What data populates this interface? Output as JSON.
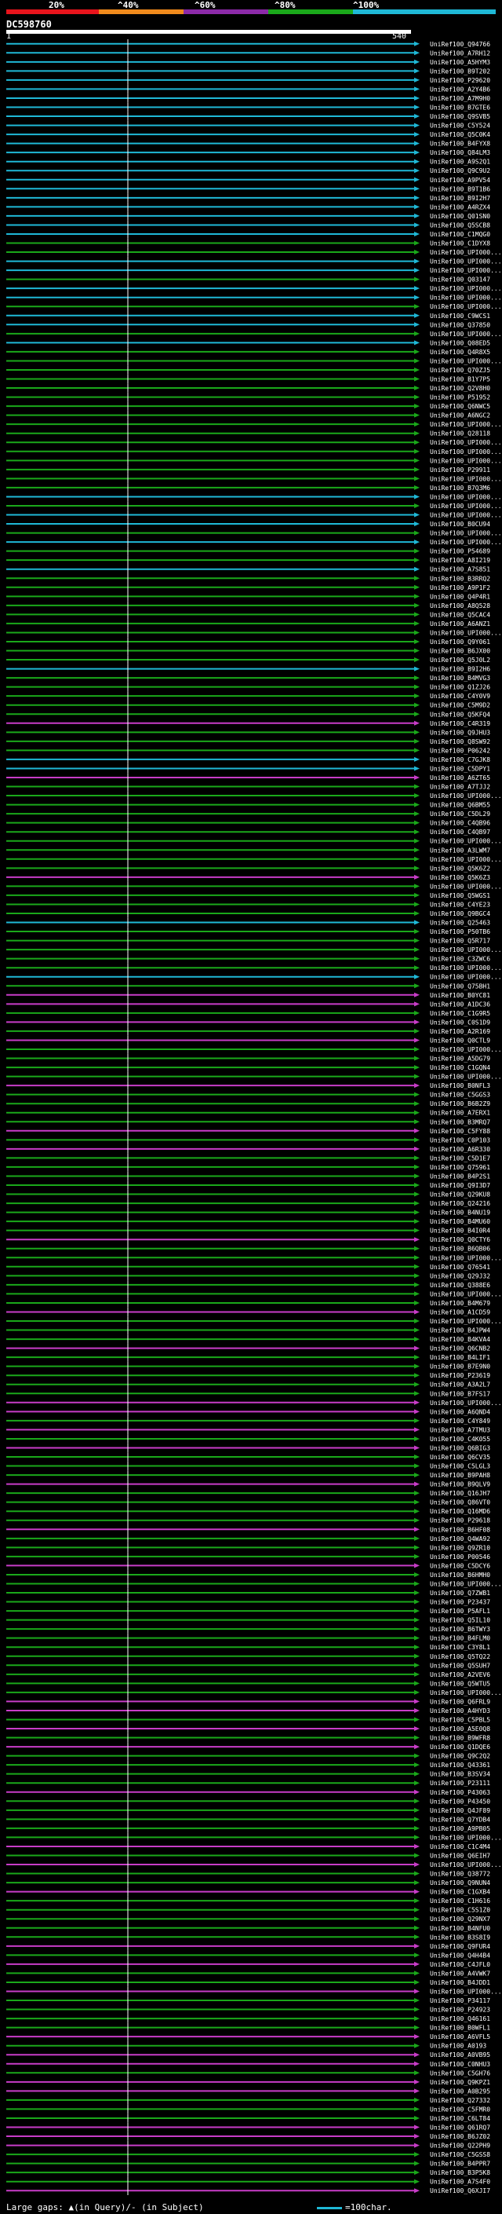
{
  "scale": {
    "labels": [
      "20%",
      "^40%",
      "^60%",
      "^80%",
      "^100%"
    ],
    "colors": [
      "#e8141c",
      "#f08a1c",
      "#8c2aa8",
      "#1aa81a",
      "#1fb8d6"
    ]
  },
  "query": {
    "name": "DC598760",
    "start": "1",
    "end": "540"
  },
  "hits": [
    {
      "label": "UniRef100_Q94766",
      "c": "cyan"
    },
    {
      "label": "UniRef100_A7RH12",
      "c": "cyan"
    },
    {
      "label": "UniRef100_A5HYM3",
      "c": "cyan"
    },
    {
      "label": "UniRef100_B9T202",
      "c": "cyan"
    },
    {
      "label": "UniRef100_P29620",
      "c": "cyan"
    },
    {
      "label": "UniRef100_A2Y4B6",
      "c": "cyan"
    },
    {
      "label": "UniRef100_A7M9H0",
      "c": "cyan"
    },
    {
      "label": "UniRef100_B7GTE6",
      "c": "cyan"
    },
    {
      "label": "UniRef100_Q9SVB5",
      "c": "cyan"
    },
    {
      "label": "UniRef100_C5Y524",
      "c": "cyan"
    },
    {
      "label": "UniRef100_Q5C0K4",
      "c": "cyan"
    },
    {
      "label": "UniRef100_B4FYX8",
      "c": "cyan"
    },
    {
      "label": "UniRef100_Q84LM3",
      "c": "cyan"
    },
    {
      "label": "UniRef100_A9S2Q1",
      "c": "cyan"
    },
    {
      "label": "UniRef100_Q9C9U2",
      "c": "cyan"
    },
    {
      "label": "UniRef100_A9PV54",
      "c": "cyan"
    },
    {
      "label": "UniRef100_B9T1B6",
      "c": "cyan"
    },
    {
      "label": "UniRef100_B9I2H7",
      "c": "cyan"
    },
    {
      "label": "UniRef100_A4RZX4",
      "c": "cyan"
    },
    {
      "label": "UniRef100_Q01SN0",
      "c": "cyan"
    },
    {
      "label": "UniRef100_Q5SCB8",
      "c": "cyan"
    },
    {
      "label": "UniRef100_C1MQG0",
      "c": "cyan"
    },
    {
      "label": "UniRef100_C1DYX8",
      "c": "green"
    },
    {
      "label": "UniRef100_UPI000...",
      "c": "green"
    },
    {
      "label": "UniRef100_UPI000...",
      "c": "cyan"
    },
    {
      "label": "UniRef100_UPI000...",
      "c": "cyan"
    },
    {
      "label": "UniRef100_Q03147",
      "c": "green"
    },
    {
      "label": "UniRef100_UPI000...",
      "c": "cyan"
    },
    {
      "label": "UniRef100_UPI000...",
      "c": "cyan"
    },
    {
      "label": "UniRef100_UPI000...",
      "c": "green"
    },
    {
      "label": "UniRef100_C9WCS1",
      "c": "cyan"
    },
    {
      "label": "UniRef100_Q37850",
      "c": "cyan"
    },
    {
      "label": "UniRef100_UPI000...",
      "c": "green"
    },
    {
      "label": "UniRef100_Q08ED5",
      "c": "cyan"
    },
    {
      "label": "UniRef100_Q4R8X5",
      "c": "green"
    },
    {
      "label": "UniRef100_UPI000...",
      "c": "green"
    },
    {
      "label": "UniRef100_Q70ZJ5",
      "c": "green"
    },
    {
      "label": "UniRef100_B1Y7P5",
      "c": "green"
    },
    {
      "label": "UniRef100_Q2V8H0",
      "c": "green"
    },
    {
      "label": "UniRef100_P51952",
      "c": "green"
    },
    {
      "label": "UniRef100_Q6NWC5",
      "c": "green"
    },
    {
      "label": "UniRef100_A6NGC2",
      "c": "green"
    },
    {
      "label": "UniRef100_UPI000...",
      "c": "green"
    },
    {
      "label": "UniRef100_Q28118",
      "c": "green"
    },
    {
      "label": "UniRef100_UPI000...",
      "c": "green"
    },
    {
      "label": "UniRef100_UPI000...",
      "c": "green"
    },
    {
      "label": "UniRef100_UPI000...",
      "c": "green"
    },
    {
      "label": "UniRef100_P29911",
      "c": "green"
    },
    {
      "label": "UniRef100_UPI000...",
      "c": "green"
    },
    {
      "label": "UniRef100_B7Q3M6",
      "c": "green"
    },
    {
      "label": "UniRef100_UPI000...",
      "c": "cyan"
    },
    {
      "label": "UniRef100_UPI000...",
      "c": "green"
    },
    {
      "label": "UniRef100_UPI000...",
      "c": "cyan"
    },
    {
      "label": "UniRef100_B0CU94",
      "c": "cyan"
    },
    {
      "label": "UniRef100_UPI000...",
      "c": "green"
    },
    {
      "label": "UniRef100_UPI000...",
      "c": "cyan"
    },
    {
      "label": "UniRef100_P54689",
      "c": "green"
    },
    {
      "label": "UniRef100_A8I219",
      "c": "green"
    },
    {
      "label": "UniRef100_A7S851",
      "c": "cyan"
    },
    {
      "label": "UniRef100_B3RRQ2",
      "c": "green"
    },
    {
      "label": "UniRef100_A9P1F2",
      "c": "green"
    },
    {
      "label": "UniRef100_Q4P4R1",
      "c": "green"
    },
    {
      "label": "UniRef100_A8Q528",
      "c": "green"
    },
    {
      "label": "UniRef100_Q5CAC4",
      "c": "green"
    },
    {
      "label": "UniRef100_A6ANZ1",
      "c": "green"
    },
    {
      "label": "UniRef100_UPI000...",
      "c": "green"
    },
    {
      "label": "UniRef100_Q9Y061",
      "c": "green"
    },
    {
      "label": "UniRef100_B6JX00",
      "c": "green"
    },
    {
      "label": "UniRef100_Q5J0L2",
      "c": "green"
    },
    {
      "label": "UniRef100_B9I2H6",
      "c": "cyan"
    },
    {
      "label": "UniRef100_B4MVG3",
      "c": "green"
    },
    {
      "label": "UniRef100_Q1ZJ26",
      "c": "green"
    },
    {
      "label": "UniRef100_C4Y0V9",
      "c": "green"
    },
    {
      "label": "UniRef100_C5M9D2",
      "c": "green"
    },
    {
      "label": "UniRef100_Q5KFQ4",
      "c": "green"
    },
    {
      "label": "UniRef100_C4R319",
      "c": "magenta"
    },
    {
      "label": "UniRef100_Q9JHU3",
      "c": "green"
    },
    {
      "label": "UniRef100_Q8SW92",
      "c": "green"
    },
    {
      "label": "UniRef100_P06242",
      "c": "green"
    },
    {
      "label": "UniRef100_C7GJK8",
      "c": "cyan"
    },
    {
      "label": "UniRef100_C5DPY1",
      "c": "cyan"
    },
    {
      "label": "UniRef100_A6ZT65",
      "c": "magenta"
    },
    {
      "label": "UniRef100_A7TJJ2",
      "c": "green"
    },
    {
      "label": "UniRef100_UPI000...",
      "c": "green"
    },
    {
      "label": "UniRef100_Q6BM55",
      "c": "green"
    },
    {
      "label": "UniRef100_C5DL29",
      "c": "green"
    },
    {
      "label": "UniRef100_C4QB96",
      "c": "green"
    },
    {
      "label": "UniRef100_C4QB97",
      "c": "green"
    },
    {
      "label": "UniRef100_UPI000...",
      "c": "green"
    },
    {
      "label": "UniRef100_A3LWM7",
      "c": "green"
    },
    {
      "label": "UniRef100_UPI000...",
      "c": "green"
    },
    {
      "label": "UniRef100_Q5K6Z2",
      "c": "green"
    },
    {
      "label": "UniRef100_Q5K6Z3",
      "c": "magenta"
    },
    {
      "label": "UniRef100_UPI000...",
      "c": "green"
    },
    {
      "label": "UniRef100_Q5WGS1",
      "c": "green"
    },
    {
      "label": "UniRef100_C4YE23",
      "c": "green"
    },
    {
      "label": "UniRef100_Q9BGC4",
      "c": "green"
    },
    {
      "label": "UniRef100_Q25463",
      "c": "cyan"
    },
    {
      "label": "UniRef100_P50TB6",
      "c": "green"
    },
    {
      "label": "UniRef100_Q5R717",
      "c": "green"
    },
    {
      "label": "UniRef100_UPI000...",
      "c": "green"
    },
    {
      "label": "UniRef100_C3ZWC6",
      "c": "green"
    },
    {
      "label": "UniRef100_UPI000...",
      "c": "green"
    },
    {
      "label": "UniRef100_UPI000...",
      "c": "cyan"
    },
    {
      "label": "UniRef100_Q75BH1",
      "c": "green"
    },
    {
      "label": "UniRef100_B0YC81",
      "c": "magenta"
    },
    {
      "label": "UniRef100_A1DC36",
      "c": "magenta"
    },
    {
      "label": "UniRef100_C1G9R5",
      "c": "green"
    },
    {
      "label": "UniRef100_C0S1D9",
      "c": "magenta"
    },
    {
      "label": "UniRef100_A2R169",
      "c": "green"
    },
    {
      "label": "UniRef100_Q0CTL9",
      "c": "magenta"
    },
    {
      "label": "UniRef100_UPI000...",
      "c": "green"
    },
    {
      "label": "UniRef100_A5DG79",
      "c": "green"
    },
    {
      "label": "UniRef100_C1GQN4",
      "c": "green"
    },
    {
      "label": "UniRef100_UPI000...",
      "c": "green"
    },
    {
      "label": "UniRef100_B0NFL3",
      "c": "magenta"
    },
    {
      "label": "UniRef100_C5GGS3",
      "c": "green"
    },
    {
      "label": "UniRef100_B6B2Z9",
      "c": "green"
    },
    {
      "label": "UniRef100_A7ERX1",
      "c": "green"
    },
    {
      "label": "UniRef100_B3MRQ7",
      "c": "green"
    },
    {
      "label": "UniRef100_C5FY88",
      "c": "magenta"
    },
    {
      "label": "UniRef100_C0P103",
      "c": "green"
    },
    {
      "label": "UniRef100_A6R330",
      "c": "magenta"
    },
    {
      "label": "UniRef100_C5D1E7",
      "c": "green"
    },
    {
      "label": "UniRef100_Q75961",
      "c": "green"
    },
    {
      "label": "UniRef100_B4P2S1",
      "c": "green"
    },
    {
      "label": "UniRef100_Q9I3D7",
      "c": "green"
    },
    {
      "label": "UniRef100_Q29KU8",
      "c": "green"
    },
    {
      "label": "UniRef100_Q24216",
      "c": "green"
    },
    {
      "label": "UniRef100_B4NU19",
      "c": "green"
    },
    {
      "label": "UniRef100_B4MU60",
      "c": "green"
    },
    {
      "label": "UniRef100_B4I0R4",
      "c": "green"
    },
    {
      "label": "UniRef100_Q0CTY6",
      "c": "magenta"
    },
    {
      "label": "UniRef100_B6QB06",
      "c": "green"
    },
    {
      "label": "UniRef100_UPI000...",
      "c": "green"
    },
    {
      "label": "UniRef100_Q76541",
      "c": "green"
    },
    {
      "label": "UniRef100_Q29J32",
      "c": "green"
    },
    {
      "label": "UniRef100_Q388E6",
      "c": "green"
    },
    {
      "label": "UniRef100_UPI000...",
      "c": "green"
    },
    {
      "label": "UniRef100_B4M679",
      "c": "green"
    },
    {
      "label": "UniRef100_A1CD59",
      "c": "magenta"
    },
    {
      "label": "UniRef100_UPI000...",
      "c": "green"
    },
    {
      "label": "UniRef100_B4JPW4",
      "c": "green"
    },
    {
      "label": "UniRef100_B4KVA4",
      "c": "green"
    },
    {
      "label": "UniRef100_Q6CNB2",
      "c": "magenta"
    },
    {
      "label": "UniRef100_B4LIF1",
      "c": "green"
    },
    {
      "label": "UniRef100_B7E9N0",
      "c": "green"
    },
    {
      "label": "UniRef100_P23619",
      "c": "green"
    },
    {
      "label": "UniRef100_A3A2L7",
      "c": "green"
    },
    {
      "label": "UniRef100_B7FS17",
      "c": "green"
    },
    {
      "label": "UniRef100_UPI000...",
      "c": "magenta"
    },
    {
      "label": "UniRef100_A6QND4",
      "c": "magenta"
    },
    {
      "label": "UniRef100_C4Y849",
      "c": "green"
    },
    {
      "label": "UniRef100_A7TMU3",
      "c": "magenta"
    },
    {
      "label": "UniRef100_C4K055",
      "c": "green"
    },
    {
      "label": "UniRef100_Q6BIG3",
      "c": "magenta"
    },
    {
      "label": "UniRef100_Q6CV35",
      "c": "green"
    },
    {
      "label": "UniRef100_C5LGL3",
      "c": "green"
    },
    {
      "label": "UniRef100_B9PAH8",
      "c": "green"
    },
    {
      "label": "UniRef100_B9QLV9",
      "c": "magenta"
    },
    {
      "label": "UniRef100_Q16JH7",
      "c": "green"
    },
    {
      "label": "UniRef100_Q86VT0",
      "c": "green"
    },
    {
      "label": "UniRef100_Q16MD6",
      "c": "green"
    },
    {
      "label": "UniRef100_P29618",
      "c": "green"
    },
    {
      "label": "UniRef100_B6HF08",
      "c": "magenta"
    },
    {
      "label": "UniRef100_Q4WA92",
      "c": "green"
    },
    {
      "label": "UniRef100_Q9ZR10",
      "c": "green"
    },
    {
      "label": "UniRef100_P00546",
      "c": "green"
    },
    {
      "label": "UniRef100_C5DCY6",
      "c": "magenta"
    },
    {
      "label": "UniRef100_B6HMH0",
      "c": "green"
    },
    {
      "label": "UniRef100_UPI000...",
      "c": "green"
    },
    {
      "label": "UniRef100_Q7ZWB1",
      "c": "green"
    },
    {
      "label": "UniRef100_P23437",
      "c": "green"
    },
    {
      "label": "UniRef100_P5AFL1",
      "c": "green"
    },
    {
      "label": "UniRef100_Q5IL10",
      "c": "green"
    },
    {
      "label": "UniRef100_B6TWY3",
      "c": "green"
    },
    {
      "label": "UniRef100_B4FLM0",
      "c": "green"
    },
    {
      "label": "UniRef100_C3Y8L1",
      "c": "green"
    },
    {
      "label": "UniRef100_Q5TQ22",
      "c": "green"
    },
    {
      "label": "UniRef100_Q5SUH7",
      "c": "green"
    },
    {
      "label": "UniRef100_A2VEV6",
      "c": "green"
    },
    {
      "label": "UniRef100_Q5WTU5",
      "c": "green"
    },
    {
      "label": "UniRef100_UPI000...",
      "c": "green"
    },
    {
      "label": "UniRef100_Q6FRL9",
      "c": "magenta"
    },
    {
      "label": "UniRef100_A4HYD3",
      "c": "magenta"
    },
    {
      "label": "UniRef100_C5PBL5",
      "c": "green"
    },
    {
      "label": "UniRef100_A5E0Q8",
      "c": "magenta"
    },
    {
      "label": "UniRef100_B9WFR8",
      "c": "green"
    },
    {
      "label": "UniRef100_Q1DQE6",
      "c": "magenta"
    },
    {
      "label": "UniRef100_Q9C2Q2",
      "c": "green"
    },
    {
      "label": "UniRef100_Q43361",
      "c": "green"
    },
    {
      "label": "UniRef100_B3SV34",
      "c": "green"
    },
    {
      "label": "UniRef100_P23111",
      "c": "green"
    },
    {
      "label": "UniRef100_P43063",
      "c": "magenta"
    },
    {
      "label": "UniRef100_P43450",
      "c": "green"
    },
    {
      "label": "UniRef100_Q4JF89",
      "c": "green"
    },
    {
      "label": "UniRef100_Q7YDB4",
      "c": "green"
    },
    {
      "label": "UniRef100_A9PB05",
      "c": "green"
    },
    {
      "label": "UniRef100_UPI000...",
      "c": "green"
    },
    {
      "label": "UniRef100_C1C4M4",
      "c": "magenta"
    },
    {
      "label": "UniRef100_Q6EIH7",
      "c": "green"
    },
    {
      "label": "UniRef100_UPI000...",
      "c": "magenta"
    },
    {
      "label": "UniRef100_Q38772",
      "c": "green"
    },
    {
      "label": "UniRef100_Q9NUN4",
      "c": "green"
    },
    {
      "label": "UniRef100_C1GXB4",
      "c": "magenta"
    },
    {
      "label": "UniRef100_C1H616",
      "c": "green"
    },
    {
      "label": "UniRef100_C5S1Z0",
      "c": "green"
    },
    {
      "label": "UniRef100_Q29NX7",
      "c": "green"
    },
    {
      "label": "UniRef100_B4NFU0",
      "c": "green"
    },
    {
      "label": "UniRef100_B3S8I9",
      "c": "green"
    },
    {
      "label": "UniRef100_Q9FUR4",
      "c": "magenta"
    },
    {
      "label": "UniRef100_Q4H4B4",
      "c": "green"
    },
    {
      "label": "UniRef100_C4JFL0",
      "c": "magenta"
    },
    {
      "label": "UniRef100_A4VWK7",
      "c": "green"
    },
    {
      "label": "UniRef100_B4JDD1",
      "c": "green"
    },
    {
      "label": "UniRef100_UPI000...",
      "c": "magenta"
    },
    {
      "label": "UniRef100_P34117",
      "c": "green"
    },
    {
      "label": "UniRef100_P24923",
      "c": "green"
    },
    {
      "label": "UniRef100_Q46161",
      "c": "green"
    },
    {
      "label": "UniRef100_B0WFL1",
      "c": "green"
    },
    {
      "label": "UniRef100_A6VFL5",
      "c": "magenta"
    },
    {
      "label": "UniRef100_A0193",
      "c": "green"
    },
    {
      "label": "UniRef100_A0VB95",
      "c": "magenta"
    },
    {
      "label": "UniRef100_C0NHU3",
      "c": "magenta"
    },
    {
      "label": "UniRef100_C5GH76",
      "c": "green"
    },
    {
      "label": "UniRef100_Q9KPZ1",
      "c": "magenta"
    },
    {
      "label": "UniRef100_A0B295",
      "c": "magenta"
    },
    {
      "label": "UniRef100_Q27332",
      "c": "green"
    },
    {
      "label": "UniRef100_C5FMR0",
      "c": "green"
    },
    {
      "label": "UniRef100_C6LT84",
      "c": "green"
    },
    {
      "label": "UniRef100_Q61RQ7",
      "c": "magenta"
    },
    {
      "label": "UniRef100_B6JZ02",
      "c": "magenta"
    },
    {
      "label": "UniRef100_Q22PH9",
      "c": "magenta"
    },
    {
      "label": "UniRef100_C5GSS8",
      "c": "green"
    },
    {
      "label": "UniRef100_B4PPR7",
      "c": "green"
    },
    {
      "label": "UniRef100_B3P5K8",
      "c": "green"
    },
    {
      "label": "UniRef100_A7S4F0",
      "c": "green"
    },
    {
      "label": "UniRef100_Q6XJI7",
      "c": "magenta"
    }
  ],
  "footer": {
    "gaps_label": "Large gaps: ▲(in Query)/- (in Subject)",
    "legend_label": "=100char."
  }
}
